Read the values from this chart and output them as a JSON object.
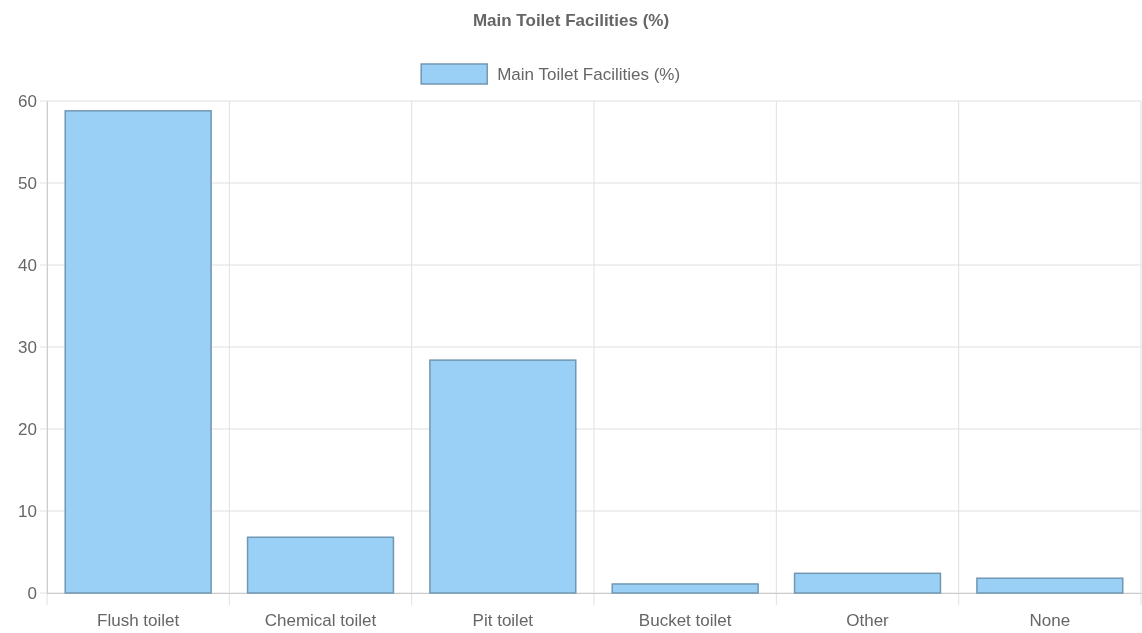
{
  "chart_data": {
    "type": "bar",
    "title": "Main Toilet Facilities (%)",
    "categories": [
      "Flush toilet",
      "Chemical toilet",
      "Pit toilet",
      "Bucket toilet",
      "Other",
      "None"
    ],
    "series": [
      {
        "name": "Main Toilet Facilities (%)",
        "color": "#9ad0f5",
        "values": [
          58.8,
          6.8,
          28.4,
          1.1,
          2.4,
          1.8
        ]
      }
    ],
    "ylim": [
      0,
      60
    ],
    "yticks": [
      0,
      10,
      20,
      30,
      40,
      50,
      60
    ],
    "grid": true,
    "legend": "top"
  }
}
